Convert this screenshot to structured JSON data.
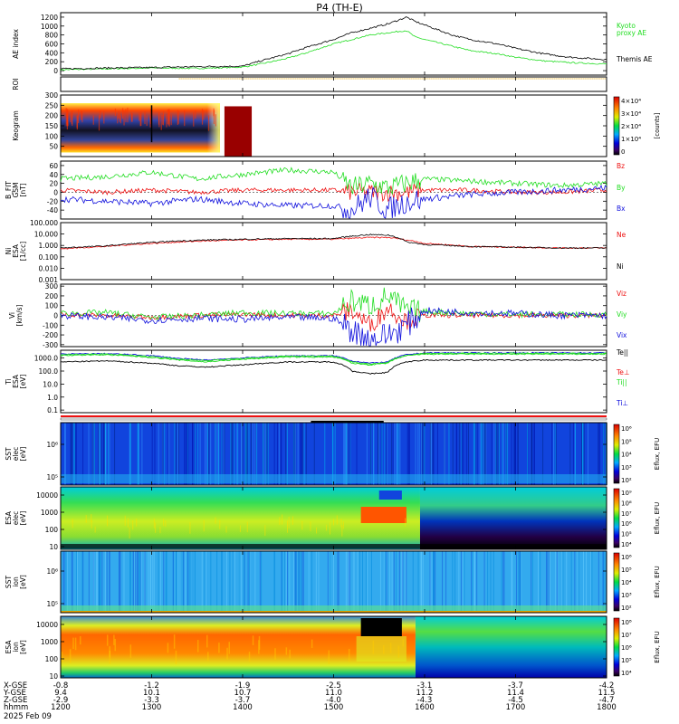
{
  "title": "P4 (TH-E)",
  "footer_date": "2025 Feb 09",
  "colors": {
    "green": "#22dd22",
    "black": "#000000",
    "red": "#ee1111",
    "blue": "#1111dd",
    "orange": "#e6a400",
    "bar_red": "#990000"
  },
  "chart_data": [
    {
      "type": "line",
      "panel": "ae",
      "ylabel": "AE index",
      "yticks": [
        "1200",
        "1000",
        "800",
        "600",
        "400",
        "200",
        "0"
      ],
      "ylim": [
        -100,
        1300
      ],
      "x": [
        12.0,
        12.5,
        13.0,
        13.5,
        14.0,
        14.2,
        14.5,
        14.7,
        15.0,
        15.2,
        15.4,
        15.6,
        15.8,
        15.9,
        16.1,
        16.3,
        16.5,
        16.8,
        17.0,
        17.3,
        17.6,
        18.0
      ],
      "series": [
        {
          "name": "Kyoto proxy AE",
          "values": [
            20,
            40,
            60,
            50,
            80,
            150,
            280,
            400,
            600,
            700,
            800,
            850,
            900,
            750,
            650,
            550,
            450,
            380,
            300,
            220,
            180,
            150
          ]
        },
        {
          "name": "Themis AE",
          "values": [
            40,
            60,
            70,
            90,
            100,
            220,
            380,
            520,
            700,
            850,
            950,
            1050,
            1200,
            1100,
            950,
            800,
            700,
            600,
            500,
            380,
            300,
            250
          ]
        }
      ],
      "legend": [
        "Kyoto",
        "proxy AE",
        "Themis AE"
      ]
    },
    {
      "type": "line",
      "panel": "roi",
      "ylabel": "ROI",
      "yticks": []
    },
    {
      "type": "heatmap",
      "panel": "keogram",
      "ylabel": "Keogram",
      "yticks": [
        "300",
        "250",
        "200",
        "150",
        "100",
        "50"
      ],
      "ylim": [
        0,
        300
      ],
      "colorbar_ticks": [
        "4×10⁴",
        "3×10⁴",
        "2×10⁴",
        "1×10⁴",
        "0"
      ],
      "colorbar_label": "[counts]"
    },
    {
      "type": "line",
      "panel": "b",
      "ylabel": "B_FIT",
      "ylabel_sub": "GSM",
      "yunit": "[nT]",
      "yticks": [
        "60",
        "40",
        "20",
        "0",
        "-20",
        "-40"
      ],
      "ylim": [
        -60,
        70
      ],
      "x": [
        12.0,
        12.5,
        13.0,
        13.5,
        14.0,
        14.5,
        15.0,
        15.2,
        15.4,
        15.6,
        15.8,
        16.0,
        16.5,
        17.0,
        17.5,
        18.0
      ],
      "series": [
        {
          "name": "Bz",
          "values": [
            5,
            0,
            5,
            0,
            5,
            5,
            5,
            0,
            0,
            0,
            0,
            5,
            5,
            0,
            0,
            5
          ]
        },
        {
          "name": "By",
          "values": [
            30,
            35,
            45,
            30,
            40,
            50,
            45,
            10,
            20,
            10,
            20,
            30,
            25,
            20,
            15,
            20
          ]
        },
        {
          "name": "Bx",
          "values": [
            -15,
            -20,
            -25,
            -15,
            -25,
            -30,
            -30,
            -40,
            -10,
            -40,
            -20,
            -15,
            -5,
            0,
            5,
            10
          ]
        }
      ],
      "legend": [
        "Bz",
        "By",
        "Bx"
      ]
    },
    {
      "type": "line",
      "panel": "n",
      "ylabel": "Ni",
      "ylabel_sub": "ESA",
      "yunit": "[1/cc]",
      "yticks": [
        "100.000",
        "10.000",
        "1.000",
        "0.100",
        "0.010",
        "0.001"
      ],
      "ylim_log10": [
        -3,
        2
      ],
      "x": [
        12.0,
        12.5,
        13.0,
        13.3,
        13.6,
        14.0,
        14.5,
        15.0,
        15.4,
        15.6,
        15.8,
        16.0,
        16.5,
        17.0,
        17.5,
        18.0
      ],
      "series": [
        {
          "name": "Ne",
          "values": [
            0.5,
            0.8,
            1.5,
            2.0,
            2.5,
            3.0,
            3.5,
            3.5,
            5.0,
            5.0,
            3.0,
            1.5,
            0.8,
            0.7,
            0.6,
            0.6
          ]
        },
        {
          "name": "Ni",
          "values": [
            0.6,
            0.9,
            1.8,
            2.5,
            3.0,
            3.5,
            4.0,
            4.0,
            9.0,
            8.0,
            2.0,
            1.2,
            0.8,
            0.7,
            0.6,
            0.6
          ]
        }
      ],
      "legend": [
        "Ne",
        "Ni"
      ]
    },
    {
      "type": "line",
      "panel": "v",
      "ylabel": "Vi",
      "yunit": "[km/s]",
      "yticks": [
        "300",
        "200",
        "100",
        "0",
        "-100",
        "-200",
        "-300"
      ],
      "ylim": [
        -320,
        320
      ],
      "x": [
        12.0,
        12.5,
        13.0,
        13.5,
        14.0,
        14.5,
        15.0,
        15.2,
        15.4,
        15.6,
        15.8,
        16.0,
        16.5,
        17.0,
        17.5,
        18.0
      ],
      "series": [
        {
          "name": "Viz",
          "values": [
            10,
            0,
            -20,
            0,
            10,
            0,
            0,
            50,
            -100,
            80,
            -50,
            0,
            0,
            0,
            0,
            0
          ]
        },
        {
          "name": "Viy",
          "values": [
            20,
            30,
            -20,
            0,
            30,
            20,
            20,
            150,
            100,
            200,
            50,
            40,
            20,
            10,
            10,
            10
          ]
        },
        {
          "name": "Vix",
          "values": [
            0,
            -20,
            -50,
            -30,
            -40,
            -20,
            -30,
            -150,
            -250,
            -200,
            -100,
            50,
            30,
            20,
            0,
            0
          ]
        }
      ],
      "legend": [
        "Viz",
        "Viy",
        "Vix"
      ]
    },
    {
      "type": "line",
      "panel": "t",
      "ylabel": "Ti",
      "ylabel_sub": "ESA",
      "yunit": "[eV]",
      "yticks": [
        "1000.0",
        "100.0",
        "10.0",
        "1.0",
        "0.1"
      ],
      "ylim_log10": [
        -1.2,
        3.6
      ],
      "x": [
        12.0,
        12.5,
        13.0,
        13.3,
        13.6,
        14.0,
        14.5,
        15.0,
        15.2,
        15.4,
        15.6,
        15.8,
        16.0,
        16.5,
        17.0,
        17.5,
        18.0
      ],
      "series": [
        {
          "name": "Te⊥",
          "values": [
            2000,
            2200,
            1500,
            900,
            700,
            1000,
            1500,
            1500,
            600,
            400,
            500,
            1800,
            2500,
            2500,
            2500,
            2500,
            2500
          ]
        },
        {
          "name": "Te||",
          "values": [
            1800,
            2000,
            1300,
            800,
            650,
            900,
            1400,
            1400,
            500,
            350,
            450,
            1600,
            2300,
            2300,
            2300,
            2300,
            2300
          ]
        },
        {
          "name": "Ti||",
          "values": [
            1600,
            1800,
            1100,
            700,
            500,
            800,
            1200,
            1200,
            400,
            300,
            400,
            1500,
            2000,
            2000,
            2000,
            2000,
            2000
          ]
        },
        {
          "name": "Ti⊥",
          "values": [
            500,
            600,
            400,
            250,
            200,
            300,
            500,
            500,
            100,
            60,
            80,
            500,
            700,
            700,
            700,
            700,
            700
          ]
        }
      ],
      "legend": [
        "Te⊥",
        "Te||",
        "Ti||",
        "Ti⊥"
      ]
    },
    {
      "type": "heatmap",
      "panel": "sst_e",
      "ylabel": "SST",
      "ylabel_sub": "elec",
      "yunit": "[eV]",
      "yticks": [
        "10⁶",
        "10⁵"
      ],
      "colorbar_ticks": [
        "10⁶",
        "10⁵",
        "10⁴",
        "10³",
        "10²"
      ],
      "colorbar_label": "Eflux, EFU"
    },
    {
      "type": "heatmap",
      "panel": "esa_e",
      "ylabel": "ESA",
      "ylabel_sub": "elec",
      "yunit": "[eV]",
      "yticks": [
        "10000",
        "1000",
        "100",
        "10"
      ],
      "colorbar_ticks": [
        "10⁹",
        "10⁸",
        "10⁷",
        "10⁶",
        "10⁵",
        "10⁴"
      ],
      "colorbar_label": "Eflux, EFU"
    },
    {
      "type": "heatmap",
      "panel": "sst_i",
      "ylabel": "SST",
      "ylabel_sub": "ion",
      "yunit": "[eV]",
      "yticks": [
        "10⁶",
        "10⁵"
      ],
      "colorbar_ticks": [
        "10⁶",
        "10⁵",
        "10⁴",
        "10³",
        "10²"
      ],
      "colorbar_label": "Eflux, EFU"
    },
    {
      "type": "heatmap",
      "panel": "esa_i",
      "ylabel": "ESA",
      "ylabel_sub": "ion",
      "yunit": "[eV]",
      "yticks": [
        "10000",
        "1000",
        "100",
        "10"
      ],
      "colorbar_ticks": [
        "10⁸",
        "10⁷",
        "10⁶",
        "10⁵",
        "10⁴"
      ],
      "colorbar_label": "Eflux, EFU"
    }
  ],
  "xaxis": {
    "row_labels": [
      "X-GSE",
      "Y-GSE",
      "Z-GSE",
      "hhmm"
    ],
    "columns": [
      {
        "x": -0.8,
        "y": 9.4,
        "z": -2.9,
        "t": "1200"
      },
      {
        "x": -1.2,
        "y": 10.1,
        "z": -3.3,
        "t": "1300"
      },
      {
        "x": -1.9,
        "y": 10.7,
        "z": -3.7,
        "t": "1400"
      },
      {
        "x": -2.5,
        "y": 11.0,
        "z": -4.0,
        "t": "1500"
      },
      {
        "x": -3.1,
        "y": 11.2,
        "z": -4.3,
        "t": "1600"
      },
      {
        "x": -3.7,
        "y": 11.4,
        "z": -4.5,
        "t": "1700"
      },
      {
        "x": -4.2,
        "y": 11.5,
        "z": -4.7,
        "t": "1800"
      }
    ]
  }
}
